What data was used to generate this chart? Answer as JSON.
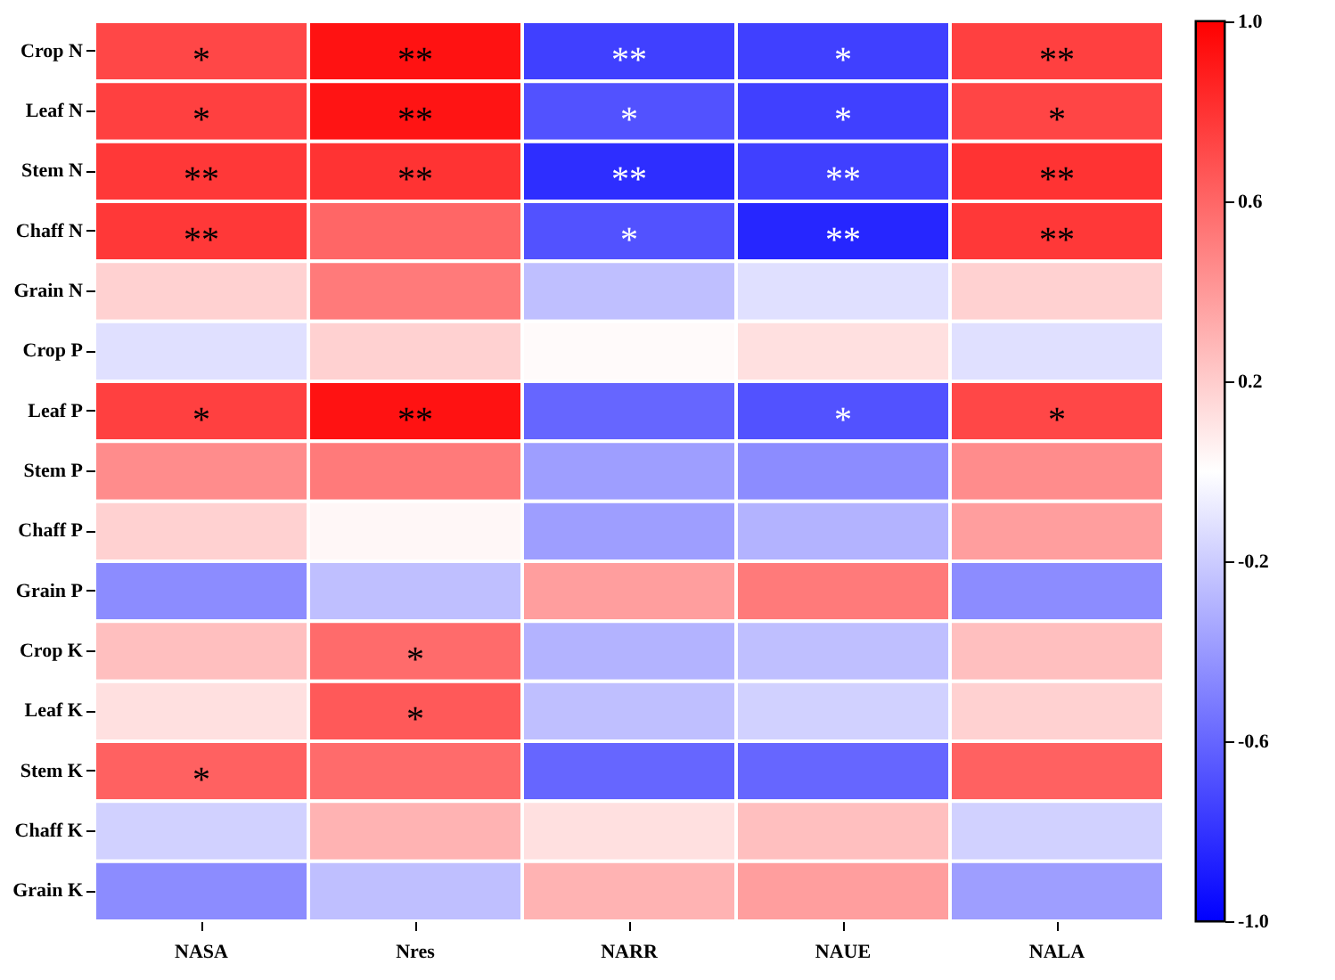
{
  "chart_data": {
    "type": "heatmap",
    "categories": [
      "NASA",
      "Nres",
      "NARR",
      "NAUE",
      "NALA"
    ],
    "y_categories": [
      "Crop N",
      "Leaf N",
      "Stem N",
      "Chaff N",
      "Grain N",
      "Crop P",
      "Leaf P",
      "Stem P",
      "Chaff P",
      "Grain P",
      "Crop K",
      "Leaf K",
      "Stem K",
      "Chaff K",
      "Grain K"
    ],
    "cells": [
      [
        0.72,
        0.93,
        -0.75,
        -0.75,
        0.75
      ],
      [
        0.75,
        0.92,
        -0.68,
        -0.75,
        0.73
      ],
      [
        0.78,
        0.8,
        -0.82,
        -0.75,
        0.8
      ],
      [
        0.78,
        0.6,
        -0.68,
        -0.85,
        0.78
      ],
      [
        0.18,
        0.52,
        -0.25,
        -0.12,
        0.18
      ],
      [
        -0.12,
        0.18,
        0.02,
        0.12,
        -0.12
      ],
      [
        0.75,
        0.93,
        -0.6,
        -0.68,
        0.72
      ],
      [
        0.45,
        0.52,
        -0.38,
        -0.45,
        0.45
      ],
      [
        0.18,
        0.03,
        -0.38,
        -0.3,
        0.38
      ],
      [
        -0.45,
        -0.25,
        0.38,
        0.52,
        -0.45
      ],
      [
        0.25,
        0.58,
        -0.3,
        -0.25,
        0.25
      ],
      [
        0.12,
        0.65,
        -0.25,
        -0.18,
        0.18
      ],
      [
        0.62,
        0.58,
        -0.6,
        -0.6,
        0.62
      ],
      [
        -0.18,
        0.3,
        0.12,
        0.25,
        -0.18
      ],
      [
        -0.45,
        -0.25,
        0.3,
        0.38,
        -0.38
      ]
    ],
    "cell_labels": [
      [
        "*",
        "**",
        "**",
        "*",
        "**"
      ],
      [
        "*",
        "**",
        "*",
        "*",
        "*"
      ],
      [
        "**",
        "**",
        "**",
        "**",
        "**"
      ],
      [
        "**",
        null,
        "*",
        "**",
        "**"
      ],
      [
        null,
        null,
        null,
        null,
        null
      ],
      [
        null,
        null,
        null,
        null,
        null
      ],
      [
        "*",
        "**",
        null,
        "*",
        "*"
      ],
      [
        null,
        null,
        null,
        null,
        null
      ],
      [
        null,
        null,
        null,
        null,
        null
      ],
      [
        null,
        null,
        null,
        null,
        null
      ],
      [
        null,
        "*",
        null,
        null,
        null
      ],
      [
        null,
        "*",
        null,
        null,
        null
      ],
      [
        "*",
        null,
        null,
        null,
        null
      ],
      [
        null,
        null,
        null,
        null,
        null
      ],
      [
        null,
        null,
        null,
        null,
        null
      ]
    ],
    "clim": [
      -1.0,
      1.0
    ],
    "cticks": [
      {
        "value": -1,
        "label": "-1.0"
      },
      -0.6,
      -0.2,
      0.2,
      0.6,
      {
        "value": 1,
        "label": "1.0"
      }
    ]
  }
}
